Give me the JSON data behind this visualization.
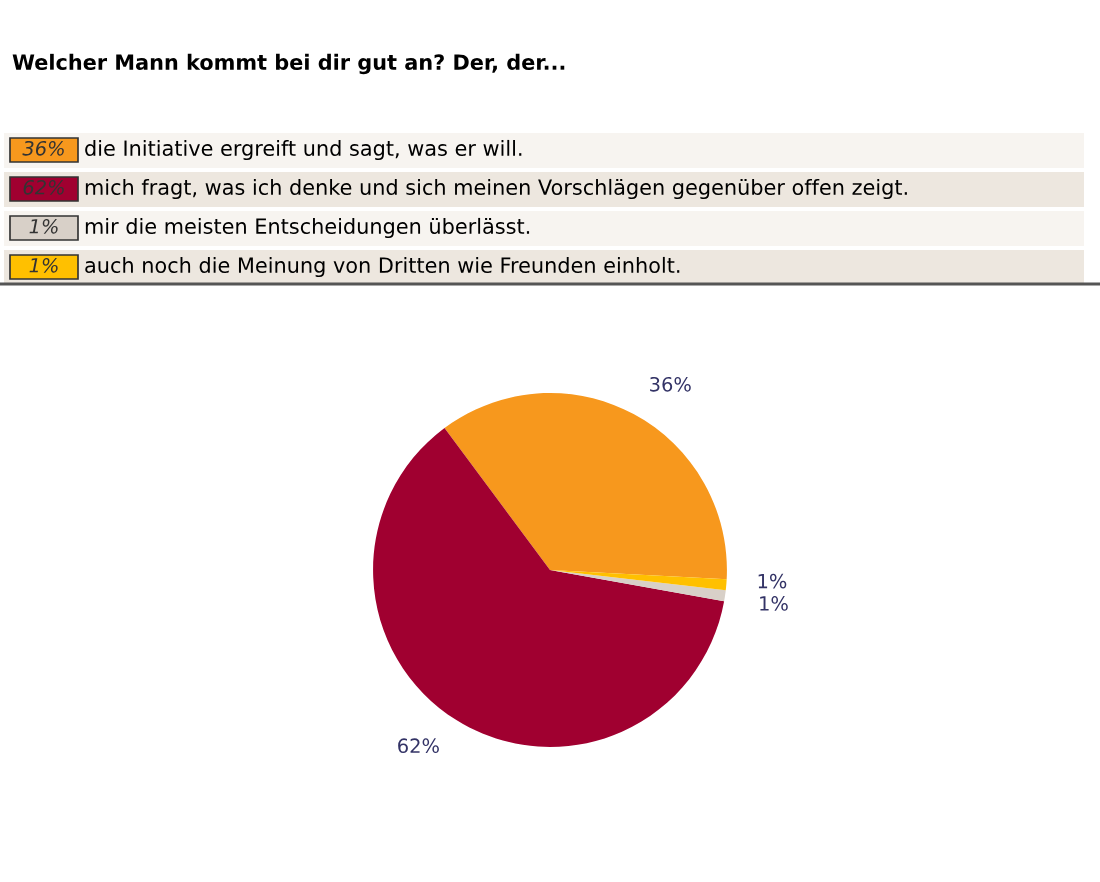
{
  "chart_data": {
    "type": "pie",
    "title": "Welcher Mann kommt bei dir gut an? Der, der...",
    "categories": [
      "die Initiative ergreift und sagt, was er will.",
      "mich fragt, was ich denke und sich meinen Vorschlägen gegenüber offen zeigt.",
      "mir die meisten Entscheidungen überlässt.",
      "auch noch die Meinung von Dritten wie Freunden einholt."
    ],
    "values": [
      36,
      62,
      1,
      1
    ],
    "colors": [
      "#f7981d",
      "#a00030",
      "#d8d0c8",
      "#ffc000"
    ],
    "value_labels": [
      "36%",
      "62%",
      "1%",
      "1%"
    ],
    "legend": "top"
  }
}
